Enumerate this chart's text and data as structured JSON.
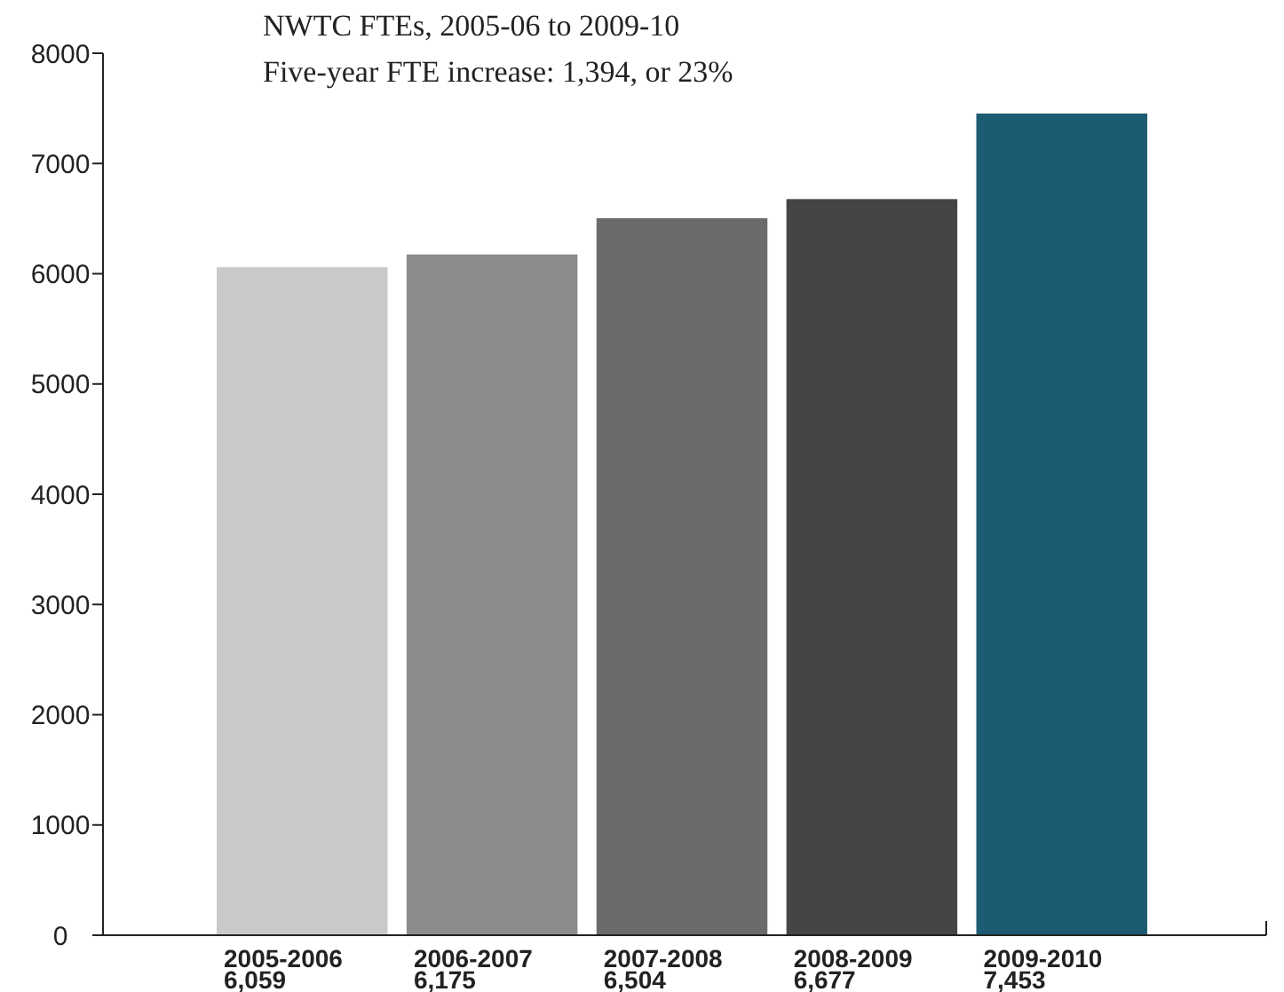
{
  "chart_data": {
    "type": "bar",
    "title": "NWTC FTEs, 2005-06 to 2009-10",
    "subtitle": "Five-year FTE increase:  1,394, or 23%",
    "categories": [
      "2005-2006",
      "2006-2007",
      "2007-2008",
      "2008-2009",
      "2009-2010"
    ],
    "values": [
      6059,
      6175,
      6504,
      6677,
      7453
    ],
    "value_labels": [
      "6,059",
      "6,175",
      "6,504",
      "6,677",
      "7,453"
    ],
    "colors": [
      "#c9c9c9",
      "#8c8c8c",
      "#6b6b6b",
      "#454545",
      "#1d5b72"
    ],
    "ylim": [
      0,
      8000
    ],
    "yticks": [
      0,
      1000,
      2000,
      3000,
      4000,
      5000,
      6000,
      7000,
      8000
    ],
    "grid": false
  }
}
